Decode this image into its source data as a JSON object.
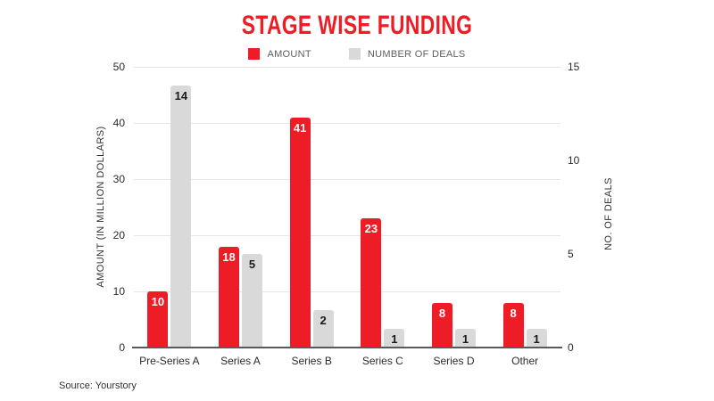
{
  "chart_data": {
    "type": "bar",
    "title": "STAGE WISE FUNDING",
    "title_color": "#ee1c25",
    "categories": [
      "Pre-Series A",
      "Series A",
      "Series B",
      "Series C",
      "Series D",
      "Other"
    ],
    "series": [
      {
        "name": "AMOUNT",
        "axis": "left",
        "color": "#ee1c25",
        "label_color": "#ffffff",
        "values": [
          10,
          18,
          41,
          23,
          8,
          8
        ]
      },
      {
        "name": "NUMBER OF DEALS",
        "axis": "right",
        "color": "#d9d9d9",
        "label_color": "#1a1a1a",
        "values": [
          14,
          5,
          2,
          1,
          1,
          1
        ]
      }
    ],
    "left_axis": {
      "title": "AMOUNT (IN MILLION DOLLARS)",
      "min": 0,
      "max": 50,
      "ticks": [
        0,
        10,
        20,
        30,
        40,
        50
      ]
    },
    "right_axis": {
      "title": "NO. OF DEALS",
      "min": 0,
      "max": 15,
      "ticks": [
        0,
        5,
        10,
        15
      ]
    },
    "grid": true,
    "legend_position": "top",
    "source": "Source: Yourstory"
  }
}
